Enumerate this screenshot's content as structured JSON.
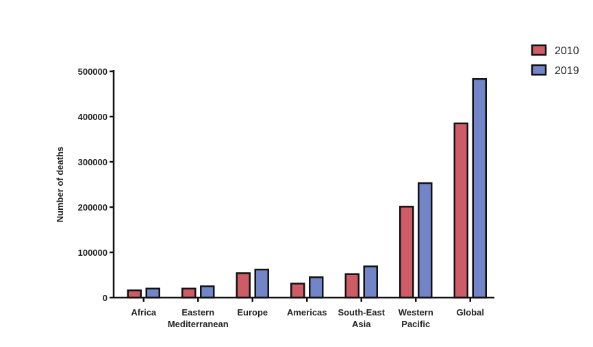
{
  "chart_data": {
    "type": "bar",
    "title": "",
    "xlabel": "",
    "ylabel": "Number of deaths",
    "ylim": [
      0,
      500000
    ],
    "yticks": [
      "0",
      "100000",
      "200000",
      "300000",
      "400000",
      "500000"
    ],
    "categories": [
      [
        "Africa"
      ],
      [
        "Eastern",
        "Mediterranean"
      ],
      [
        "Europe"
      ],
      [
        "Americas"
      ],
      [
        "South-East",
        "Asia"
      ],
      [
        "Western",
        "Pacific"
      ],
      [
        "Global"
      ]
    ],
    "series": [
      {
        "name": "2010",
        "color": "#cd5c66",
        "values": [
          16000,
          20000,
          54000,
          31000,
          52000,
          201000,
          385000
        ]
      },
      {
        "name": "2019",
        "color": "#7285c9",
        "values": [
          20000,
          25000,
          62000,
          45000,
          69000,
          253000,
          483000
        ]
      }
    ],
    "grid": false,
    "legend_position": "top-right"
  }
}
